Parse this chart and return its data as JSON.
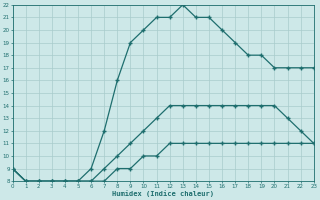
{
  "xlabel": "Humidex (Indice chaleur)",
  "bg_color": "#cde8e8",
  "grid_color": "#a8cccc",
  "line_color": "#1e6e6e",
  "xlim": [
    0,
    23
  ],
  "ylim": [
    8,
    22
  ],
  "xticks": [
    0,
    1,
    2,
    3,
    4,
    5,
    6,
    7,
    8,
    9,
    10,
    11,
    12,
    13,
    14,
    15,
    16,
    17,
    18,
    19,
    20,
    21,
    22,
    23
  ],
  "yticks": [
    8,
    9,
    10,
    11,
    12,
    13,
    14,
    15,
    16,
    17,
    18,
    19,
    20,
    21,
    22
  ],
  "line1_x": [
    0,
    1,
    2,
    3,
    4,
    5,
    6,
    7,
    8,
    9,
    10,
    11,
    12,
    13,
    14,
    15,
    16,
    17,
    18,
    19,
    20,
    21,
    22,
    23
  ],
  "line1_y": [
    9,
    8,
    8,
    8,
    8,
    8,
    8,
    8,
    9,
    9,
    10,
    10,
    11,
    11,
    11,
    11,
    11,
    11,
    11,
    11,
    11,
    11,
    11,
    11
  ],
  "line2_x": [
    0,
    1,
    2,
    3,
    4,
    5,
    6,
    7,
    8,
    9,
    10,
    11,
    12,
    13,
    14,
    15,
    16,
    17,
    18,
    19,
    20,
    21,
    22,
    23
  ],
  "line2_y": [
    9,
    8,
    8,
    8,
    8,
    8,
    8,
    9,
    10,
    11,
    12,
    13,
    14,
    14,
    14,
    14,
    14,
    14,
    14,
    14,
    14,
    13,
    12,
    11
  ],
  "line3_x": [
    0,
    1,
    2,
    3,
    4,
    5,
    6,
    7,
    8,
    9,
    10,
    11,
    12,
    13,
    14,
    15,
    16,
    17,
    18,
    19,
    20,
    21,
    22,
    23
  ],
  "line3_y": [
    9,
    8,
    8,
    8,
    8,
    8,
    9,
    12,
    16,
    19,
    20,
    21,
    21,
    22,
    21,
    21,
    20,
    19,
    18,
    18,
    17,
    17,
    17,
    17
  ]
}
